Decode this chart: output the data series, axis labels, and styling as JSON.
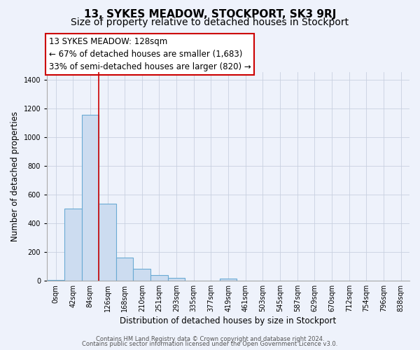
{
  "title": "13, SYKES MEADOW, STOCKPORT, SK3 9RJ",
  "subtitle": "Size of property relative to detached houses in Stockport",
  "xlabel": "Distribution of detached houses by size in Stockport",
  "ylabel": "Number of detached properties",
  "bar_labels": [
    "0sqm",
    "42sqm",
    "84sqm",
    "126sqm",
    "168sqm",
    "210sqm",
    "251sqm",
    "293sqm",
    "335sqm",
    "377sqm",
    "419sqm",
    "461sqm",
    "503sqm",
    "545sqm",
    "587sqm",
    "629sqm",
    "670sqm",
    "712sqm",
    "754sqm",
    "796sqm",
    "838sqm"
  ],
  "bar_values": [
    5,
    500,
    1155,
    535,
    160,
    80,
    37,
    18,
    0,
    0,
    15,
    0,
    0,
    0,
    0,
    0,
    0,
    0,
    0,
    0,
    0
  ],
  "bar_color": "#ccdcf0",
  "bar_edge_color": "#6aaad4",
  "bar_edge_width": 0.8,
  "red_line_x": 3,
  "red_line_color": "#cc0000",
  "annotation_line1": "13 SYKES MEADOW: 128sqm",
  "annotation_line2": "← 67% of detached houses are smaller (1,683)",
  "annotation_line3": "33% of semi-detached houses are larger (820) →",
  "ylim": [
    0,
    1450
  ],
  "yticks": [
    0,
    200,
    400,
    600,
    800,
    1000,
    1200,
    1400
  ],
  "footer_line1": "Contains HM Land Registry data © Crown copyright and database right 2024.",
  "footer_line2": "Contains public sector information licensed under the Open Government Licence v3.0.",
  "background_color": "#eef2fb",
  "plot_bg_color": "#eef2fb",
  "grid_color": "#c8d0e0",
  "title_fontsize": 11,
  "subtitle_fontsize": 10,
  "axis_label_fontsize": 8.5,
  "tick_fontsize": 7,
  "annotation_fontsize": 8.5,
  "footer_fontsize": 6
}
